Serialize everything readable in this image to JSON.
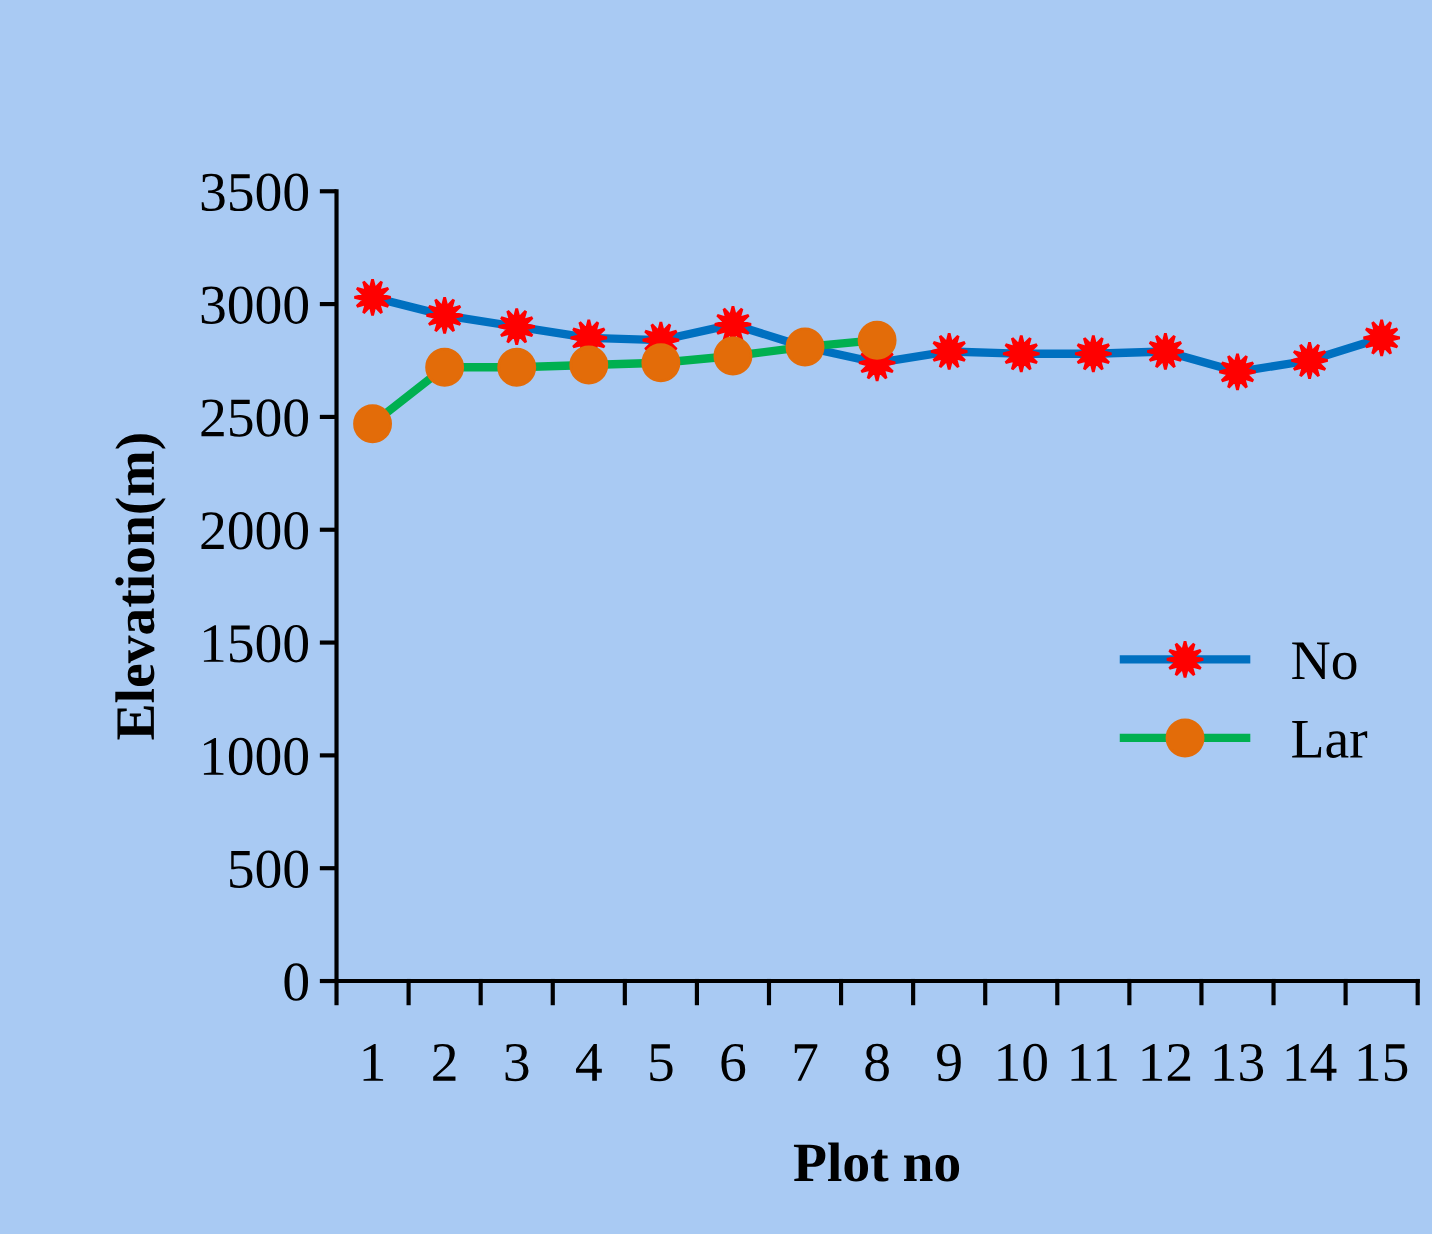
{
  "chart_data": {
    "type": "line",
    "xlabel": "Plot no",
    "ylabel": "Elevation(m)",
    "categories": [
      "1",
      "2",
      "3",
      "4",
      "5",
      "6",
      "7",
      "8",
      "9",
      "10",
      "11",
      "12",
      "13",
      "14",
      "15"
    ],
    "series": [
      {
        "name": "No",
        "color": "#0070c0",
        "colors": [
          "#ff0000",
          "#ff0000",
          "#ff0000",
          "#ff0000",
          "#ff0000",
          "#ff0000",
          "#ff0000",
          "#ff0000",
          "#ff0000",
          "#ff0000",
          "#ff0000",
          "#ff0000",
          "#ff0000",
          "#ff0000",
          "#ff0000"
        ],
        "marker": "star",
        "values": [
          3030,
          2950,
          2900,
          2850,
          2840,
          2910,
          2810,
          2740,
          2790,
          2780,
          2780,
          2790,
          2700,
          2750,
          2850
        ]
      },
      {
        "name": "Lar",
        "color": "#00b050",
        "colors": [
          "#e36c09",
          "#e36c09",
          "#e36c09",
          "#e36c09",
          "#e36c09",
          "#e36c09",
          "#e36c09",
          "#e36c09",
          null,
          null,
          null,
          null,
          null,
          null,
          null
        ],
        "marker": "circle",
        "values": [
          2470,
          2720,
          2720,
          2730,
          2740,
          2770,
          2810,
          2840,
          null,
          null,
          null,
          null,
          null,
          null,
          null
        ]
      }
    ],
    "ylim": [
      0,
      3500
    ],
    "yticks": [
      0,
      500,
      1000,
      1500,
      2000,
      2500,
      3000,
      3500
    ],
    "grid": false,
    "legend": "right",
    "line_style": "solid"
  }
}
